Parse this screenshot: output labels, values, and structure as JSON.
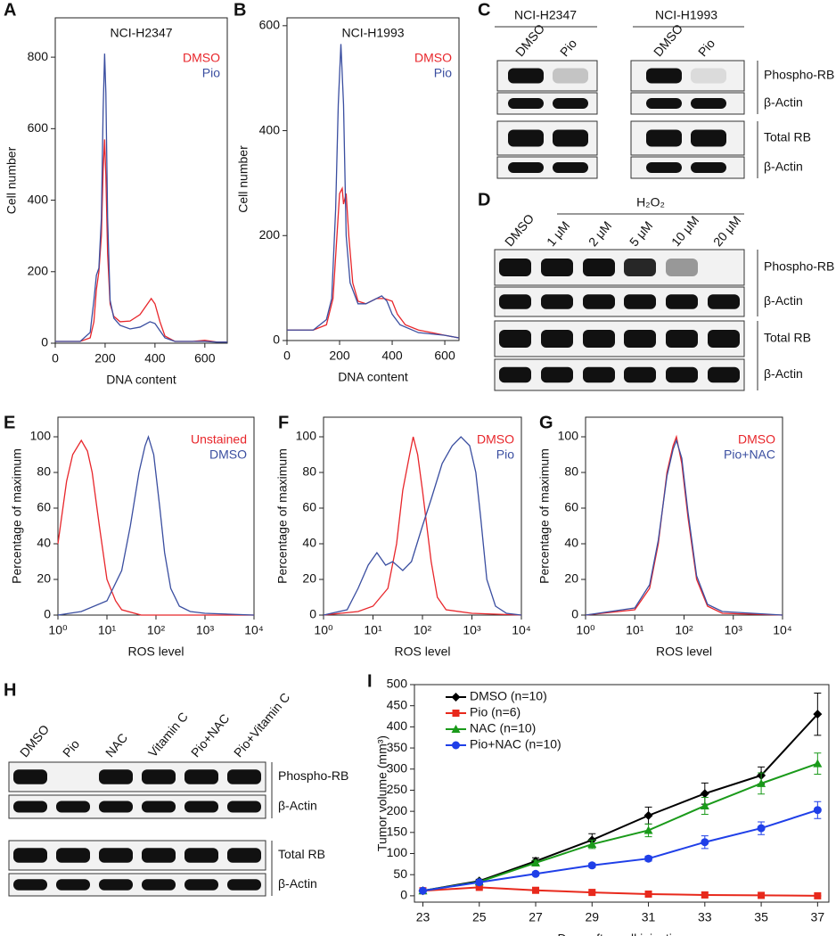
{
  "chart_data": [
    {
      "type": "line",
      "label": "A",
      "title": "NCI-H2347",
      "xlabel": "DNA content",
      "ylabel": "Cell number",
      "xlim": [
        0,
        690
      ],
      "ylim": [
        0,
        910
      ],
      "xticks": [
        0,
        200,
        400,
        600
      ],
      "yticks": [
        0,
        200,
        400,
        600,
        800
      ],
      "legend": "upper right",
      "series": [
        {
          "name": "DMSO",
          "color": "#e8262b",
          "x": [
            0,
            100,
            140,
            155,
            165,
            175,
            185,
            192,
            198,
            203,
            210,
            220,
            235,
            260,
            300,
            340,
            370,
            385,
            400,
            420,
            440,
            480,
            550,
            600,
            650,
            690
          ],
          "values": [
            5,
            5,
            15,
            60,
            150,
            200,
            300,
            480,
            570,
            470,
            250,
            110,
            75,
            60,
            62,
            80,
            110,
            125,
            110,
            60,
            20,
            5,
            5,
            8,
            3,
            3
          ]
        },
        {
          "name": "Pio",
          "color": "#3a4ea0",
          "x": [
            0,
            100,
            140,
            155,
            165,
            175,
            185,
            192,
            198,
            203,
            210,
            220,
            235,
            260,
            300,
            340,
            380,
            400,
            420,
            440,
            480,
            550,
            600,
            650,
            690
          ],
          "values": [
            5,
            5,
            30,
            120,
            190,
            210,
            350,
            650,
            810,
            700,
            350,
            120,
            70,
            50,
            40,
            45,
            60,
            55,
            35,
            15,
            5,
            5,
            5,
            3,
            3
          ]
        }
      ]
    },
    {
      "type": "line",
      "label": "B",
      "title": "NCI-H1993",
      "xlabel": "DNA content",
      "ylabel": "Cell number",
      "xlim": [
        0,
        654
      ],
      "ylim": [
        0,
        615
      ],
      "xticks": [
        0,
        200,
        400,
        600
      ],
      "yticks": [
        0,
        200,
        400,
        600
      ],
      "legend": "upper right",
      "series": [
        {
          "name": "DMSO",
          "color": "#e8262b",
          "x": [
            0,
            100,
            150,
            175,
            190,
            200,
            210,
            215,
            225,
            235,
            250,
            270,
            300,
            340,
            370,
            400,
            420,
            450,
            500,
            550,
            600,
            654
          ],
          "values": [
            20,
            20,
            30,
            80,
            200,
            280,
            290,
            260,
            280,
            200,
            110,
            75,
            70,
            80,
            80,
            75,
            50,
            30,
            20,
            15,
            10,
            5
          ]
        },
        {
          "name": "Pio",
          "color": "#3a4ea0",
          "x": [
            0,
            100,
            150,
            170,
            185,
            195,
            205,
            215,
            225,
            240,
            270,
            300,
            340,
            360,
            380,
            400,
            430,
            500,
            600,
            654
          ],
          "values": [
            20,
            20,
            40,
            80,
            250,
            450,
            565,
            450,
            200,
            110,
            70,
            70,
            80,
            85,
            75,
            50,
            30,
            15,
            10,
            5
          ]
        }
      ]
    },
    {
      "type": "line",
      "label": "E",
      "xlabel": "ROS level",
      "ylabel": "Percentage of maximum",
      "xscale": "log",
      "xlim": [
        1,
        10000
      ],
      "ylim": [
        0,
        111
      ],
      "xticks": [
        {
          "value": 1,
          "label": "10⁰"
        },
        {
          "value": 10,
          "label": "10¹"
        },
        {
          "value": 100,
          "label": "10²"
        },
        {
          "value": 1000,
          "label": "10³"
        },
        {
          "value": 10000,
          "label": "10⁴"
        }
      ],
      "yticks": [
        0,
        20,
        40,
        60,
        80,
        100
      ],
      "legend": "upper right",
      "series": [
        {
          "name": "Unstained",
          "color": "#e8262b",
          "x": [
            1,
            1.5,
            2,
            3,
            4,
            5,
            7,
            10,
            15,
            20,
            50,
            10000
          ],
          "values": [
            40,
            75,
            90,
            98,
            92,
            80,
            50,
            20,
            8,
            3,
            0,
            0
          ]
        },
        {
          "name": "DMSO",
          "color": "#3a4ea0",
          "x": [
            1,
            3,
            10,
            20,
            30,
            45,
            60,
            70,
            90,
            120,
            150,
            200,
            300,
            500,
            1000,
            10000
          ],
          "values": [
            0,
            2,
            8,
            25,
            50,
            80,
            95,
            100,
            90,
            60,
            35,
            15,
            5,
            2,
            1,
            0
          ]
        }
      ]
    },
    {
      "type": "line",
      "label": "F",
      "xlabel": "ROS level",
      "ylabel": "Percentage of maximum",
      "xscale": "log",
      "xlim": [
        1,
        10000
      ],
      "ylim": [
        0,
        111
      ],
      "xticks": [
        {
          "value": 1,
          "label": "10⁰"
        },
        {
          "value": 10,
          "label": "10¹"
        },
        {
          "value": 100,
          "label": "10²"
        },
        {
          "value": 1000,
          "label": "10³"
        },
        {
          "value": 10000,
          "label": "10⁴"
        }
      ],
      "yticks": [
        0,
        20,
        40,
        60,
        80,
        100
      ],
      "legend": "upper right",
      "series": [
        {
          "name": "DMSO",
          "color": "#e8262b",
          "x": [
            1,
            5,
            10,
            20,
            30,
            40,
            55,
            65,
            80,
            100,
            150,
            200,
            300,
            1000,
            10000
          ],
          "values": [
            0,
            2,
            5,
            15,
            40,
            70,
            90,
            100,
            90,
            70,
            30,
            10,
            3,
            1,
            0
          ]
        },
        {
          "name": "Pio",
          "color": "#3a4ea0",
          "x": [
            1,
            3,
            5,
            8,
            12,
            18,
            25,
            40,
            60,
            100,
            150,
            250,
            400,
            600,
            900,
            1200,
            1500,
            2000,
            3000,
            5000,
            10000
          ],
          "values": [
            0,
            3,
            15,
            28,
            35,
            28,
            30,
            25,
            30,
            50,
            65,
            85,
            95,
            100,
            95,
            80,
            55,
            20,
            5,
            1,
            0
          ]
        }
      ]
    },
    {
      "type": "line",
      "label": "G",
      "xlabel": "ROS level",
      "ylabel": "Percentage of maximum",
      "xscale": "log",
      "xlim": [
        1,
        10000
      ],
      "ylim": [
        0,
        111
      ],
      "xticks": [
        {
          "value": 1,
          "label": "10⁰"
        },
        {
          "value": 10,
          "label": "10¹"
        },
        {
          "value": 100,
          "label": "10²"
        },
        {
          "value": 1000,
          "label": "10³"
        },
        {
          "value": 10000,
          "label": "10⁴"
        }
      ],
      "yticks": [
        0,
        20,
        40,
        60,
        80,
        100
      ],
      "legend": "upper right",
      "series": [
        {
          "name": "DMSO",
          "color": "#e8262b",
          "x": [
            1,
            10,
            20,
            30,
            45,
            60,
            70,
            90,
            120,
            180,
            300,
            600,
            10000
          ],
          "values": [
            0,
            3,
            15,
            40,
            80,
            95,
            100,
            85,
            55,
            20,
            5,
            1,
            0
          ]
        },
        {
          "name": "Pio+NAC",
          "color": "#3a4ea0",
          "x": [
            1,
            10,
            20,
            30,
            45,
            60,
            70,
            90,
            120,
            180,
            300,
            600,
            10000
          ],
          "values": [
            0,
            4,
            17,
            42,
            78,
            93,
            98,
            88,
            58,
            22,
            6,
            2,
            0
          ]
        }
      ]
    },
    {
      "type": "errorline",
      "label": "I",
      "xlabel": "Days after cell injection",
      "ylabel": "Tumor volume (mm³)",
      "xlim": [
        22.7,
        37.4
      ],
      "ylim": [
        -15,
        500
      ],
      "xticks": [
        23,
        25,
        27,
        29,
        31,
        33,
        35,
        37
      ],
      "yticks": [
        0,
        50,
        100,
        150,
        200,
        250,
        300,
        350,
        400,
        450,
        500
      ],
      "legend": "upper left",
      "x": [
        23,
        25,
        27,
        29,
        31,
        33,
        35,
        37
      ],
      "series": [
        {
          "name": "DMSO (n=10)",
          "color": "#000000",
          "marker": "diamond",
          "values": [
            12,
            35,
            82,
            132,
            190,
            242,
            285,
            430
          ],
          "errors": [
            3,
            4,
            8,
            15,
            20,
            25,
            20,
            50
          ]
        },
        {
          "name": "Pio (n=6)",
          "color": "#e8291c",
          "marker": "square",
          "values": [
            12,
            20,
            13,
            8,
            4,
            2,
            1,
            0
          ],
          "errors": [
            2,
            3,
            2,
            2,
            1,
            1,
            1,
            1
          ]
        },
        {
          "name": "NAC (n=10)",
          "color": "#1a9a1a",
          "marker": "triangle",
          "values": [
            12,
            33,
            78,
            122,
            155,
            213,
            266,
            313
          ],
          "errors": [
            3,
            4,
            6,
            10,
            15,
            20,
            25,
            25
          ]
        },
        {
          "name": "Pio+NAC (n=10)",
          "color": "#1f3fe8",
          "marker": "circle",
          "values": [
            12,
            32,
            52,
            72,
            88,
            127,
            160,
            203
          ],
          "errors": [
            2,
            3,
            4,
            5,
            6,
            15,
            15,
            20
          ]
        }
      ]
    }
  ],
  "blot_c": {
    "label": "C",
    "cell_lines": [
      "NCI-H2347",
      "NCI-H1993"
    ],
    "lanes": [
      "DMSO",
      "Pio",
      "DMSO",
      "Pio"
    ],
    "rows": [
      "Phospho-RB",
      "β-Actin",
      "Total RB",
      "β-Actin"
    ]
  },
  "blot_d": {
    "label": "D",
    "treatment": "H₂O₂",
    "lanes": [
      "DMSO",
      "1 μM",
      "2 μM",
      "5 μM",
      "10 μM",
      "20 μM"
    ],
    "rows": [
      "Phospho-RB",
      "β-Actin",
      "Total RB",
      "β-Actin"
    ]
  },
  "blot_h": {
    "label": "H",
    "lanes": [
      "DMSO",
      "Pio",
      "NAC",
      "Vitamin C",
      "Pio+NAC",
      "Pio+Vitamin C"
    ],
    "rows": [
      "Phospho-RB",
      "β-Actin",
      "Total RB",
      "β-Actin"
    ]
  }
}
